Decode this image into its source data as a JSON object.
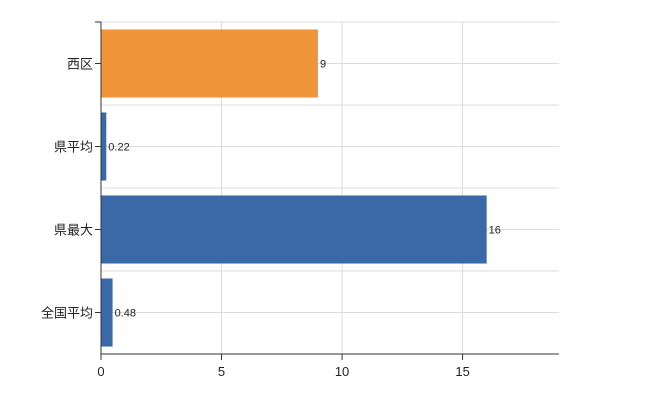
{
  "chart_data": {
    "type": "bar",
    "orientation": "horizontal",
    "categories": [
      "西区",
      "県平均",
      "県最大",
      "全国平均"
    ],
    "values": [
      9,
      0.22,
      16,
      0.48
    ],
    "data_labels": [
      "9",
      "0.22",
      "16",
      "0.48"
    ],
    "bar_colors": [
      "#f0953a",
      "#3b68a6",
      "#3b68a6",
      "#3b68a6"
    ],
    "xlim": [
      0,
      19
    ],
    "xticks": [
      0,
      5,
      10,
      15
    ],
    "xtick_labels": [
      "0",
      "5",
      "10",
      "15"
    ],
    "grid": true,
    "legend": false
  }
}
